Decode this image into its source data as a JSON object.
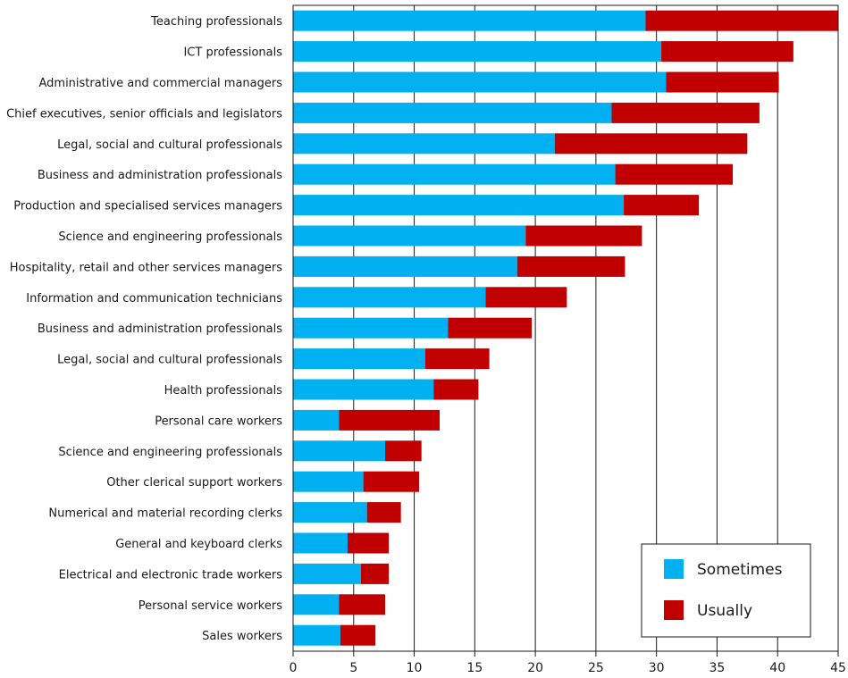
{
  "chart_data": {
    "type": "bar",
    "orientation": "horizontal",
    "stacked": true,
    "title": "",
    "xlabel": "",
    "ylabel": "",
    "xlim": [
      0,
      45
    ],
    "xticks": [
      0,
      5,
      10,
      15,
      20,
      25,
      30,
      35,
      40,
      45
    ],
    "grid": true,
    "legend_position": "bottom-right",
    "categories": [
      "Teaching professionals",
      "ICT professionals",
      "Administrative and commercial managers",
      "Chief executives, senior officials and legislators",
      "Legal, social and cultural professionals",
      "Business and administration professionals",
      "Production and specialised services managers",
      "Science and engineering professionals",
      "Hospitality, retail and other services managers",
      "Information and communication technicians",
      "Business and administration professionals",
      "Legal, social and cultural professionals",
      "Health professionals",
      "Personal care workers",
      "Science and engineering professionals",
      "Other clerical support workers",
      "Numerical and material recording clerks",
      "General and keyboard clerks",
      "Electrical and electronic trade workers",
      "Personal service workers",
      "Sales workers"
    ],
    "series": [
      {
        "name": "Sometimes",
        "color": "#00b0f0",
        "values": [
          29.1,
          30.4,
          30.8,
          26.3,
          21.6,
          26.6,
          27.3,
          19.2,
          18.5,
          15.9,
          12.8,
          10.9,
          11.6,
          3.8,
          7.6,
          5.8,
          6.1,
          4.5,
          5.6,
          3.8,
          3.9
        ]
      },
      {
        "name": "Usually",
        "color": "#c00000",
        "values": [
          15.9,
          10.9,
          9.3,
          12.2,
          15.9,
          9.7,
          6.2,
          9.6,
          8.9,
          6.7,
          6.9,
          5.3,
          3.7,
          8.3,
          3.0,
          4.6,
          2.8,
          3.4,
          2.3,
          3.8,
          2.9
        ]
      }
    ]
  }
}
